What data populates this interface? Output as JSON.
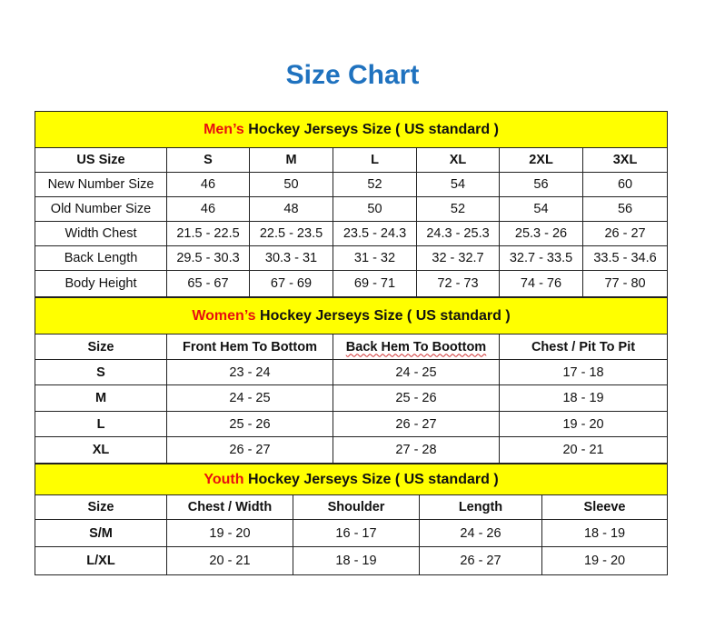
{
  "title": "Size Chart",
  "accent_color": "#1f72bf",
  "section_bg": "#ffff00",
  "men": {
    "heading_prefix": "Men’s",
    "heading_rest": " Hockey Jerseys Size ( US standard )",
    "columns": [
      "US Size",
      "S",
      "M",
      "L",
      "XL",
      "2XL",
      "3XL"
    ],
    "rows": [
      [
        "New Number Size",
        "46",
        "50",
        "52",
        "54",
        "56",
        "60"
      ],
      [
        "Old Number Size",
        "46",
        "48",
        "50",
        "52",
        "54",
        "56"
      ],
      [
        "Width Chest",
        "21.5 - 22.5",
        "22.5 - 23.5",
        "23.5 - 24.3",
        "24.3 - 25.3",
        "25.3 - 26",
        "26 - 27"
      ],
      [
        "Back Length",
        "29.5 - 30.3",
        "30.3 - 31",
        "31 - 32",
        "32 - 32.7",
        "32.7 - 33.5",
        "33.5 - 34.6"
      ],
      [
        "Body Height",
        "65 - 67",
        "67 - 69",
        "69 - 71",
        "72 - 73",
        "74 - 76",
        "77 - 80"
      ]
    ]
  },
  "women": {
    "heading_prefix": "Women’s",
    "heading_rest": " Hockey Jerseys Size ( US standard )",
    "columns": [
      "Size",
      "Front Hem To Bottom",
      "Back Hem To Boottom",
      "Chest / Pit To Pit"
    ],
    "rows": [
      [
        "S",
        "23 - 24",
        "24 - 25",
        "17 - 18"
      ],
      [
        "M",
        "24 - 25",
        "25 - 26",
        "18 - 19"
      ],
      [
        "L",
        "25 - 26",
        "26 - 27",
        "19 - 20"
      ],
      [
        "XL",
        "26 - 27",
        "27 - 28",
        "20 - 21"
      ]
    ]
  },
  "youth": {
    "heading_prefix": "Youth",
    "heading_rest": " Hockey Jerseys Size ( US standard )",
    "columns": [
      "Size",
      "Chest / Width",
      "Shoulder",
      "Length",
      "Sleeve"
    ],
    "rows": [
      [
        "S/M",
        "19 - 20",
        "16 - 17",
        "24 - 26",
        "18 - 19"
      ],
      [
        "L/XL",
        "20 - 21",
        "18 - 19",
        "26 - 27",
        "19 - 20"
      ]
    ]
  }
}
